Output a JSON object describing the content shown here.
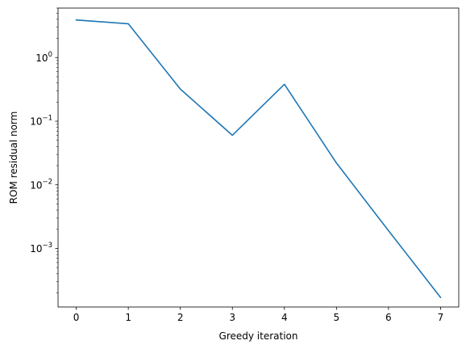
{
  "chart_data": {
    "type": "line",
    "title": "",
    "xlabel": "Greedy iteration",
    "ylabel": "ROM residual norm",
    "yscale": "log",
    "xlim": [
      -0.35,
      7.35
    ],
    "ylim": [
      0.00012,
      6.0
    ],
    "grid": false,
    "legend": "none",
    "x_ticks": [
      0,
      1,
      2,
      3,
      4,
      5,
      6,
      7
    ],
    "x_tick_labels": [
      "0",
      "1",
      "2",
      "3",
      "4",
      "5",
      "6",
      "7"
    ],
    "y_ticks": [
      0.001,
      0.01,
      0.1,
      1
    ],
    "y_tick_labels": [
      {
        "base": "10",
        "exp": "−3"
      },
      {
        "base": "10",
        "exp": "−2"
      },
      {
        "base": "10",
        "exp": "−1"
      },
      {
        "base": "10",
        "exp": "0"
      }
    ],
    "series": [
      {
        "color": "#1f77b4",
        "x": [
          0,
          1,
          2,
          3,
          4,
          5,
          6,
          7
        ],
        "y": [
          3.9,
          3.4,
          0.32,
          0.06,
          0.38,
          0.022,
          0.0019,
          0.00017
        ]
      }
    ]
  }
}
